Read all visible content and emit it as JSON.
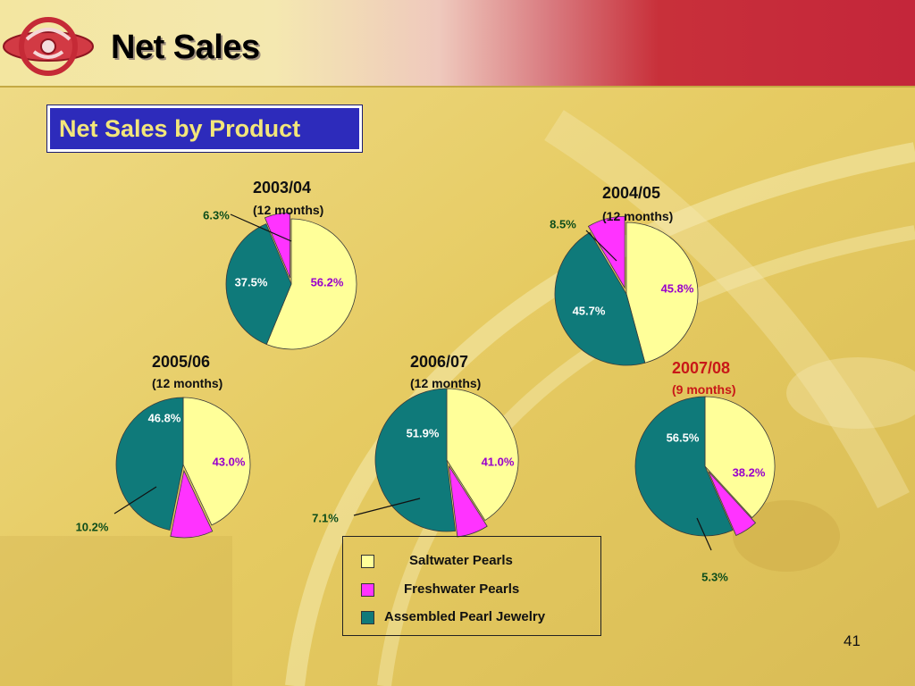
{
  "header": {
    "title": "Net Sales"
  },
  "section": {
    "title": "Net Sales by Product"
  },
  "colors": {
    "saltwater": "#ffff99",
    "freshwater": "#ff33ff",
    "assembled": "#0f7a7a",
    "label_saltwater": "#9900cc",
    "label_assembled": "#ffffff",
    "label_outside": "#0d4d1a",
    "highlight_year": "#c81818"
  },
  "legend": {
    "items": [
      {
        "name": "Saltwater Pearls",
        "color": "#ffff99"
      },
      {
        "name": "Freshwater Pearls",
        "color": "#ff33ff"
      },
      {
        "name": "Assembled Pearl Jewelry",
        "color": "#0f7a7a"
      }
    ]
  },
  "chart_data": [
    {
      "type": "pie",
      "title": "2003/04",
      "subtitle": "(12 months)",
      "categories": [
        "Saltwater Pearls",
        "Assembled Pearl Jewelry",
        "Freshwater Pearls"
      ],
      "values": [
        56.2,
        37.5,
        6.3
      ],
      "labels": [
        "56.2%",
        "37.5%",
        "6.3%"
      ],
      "exploded": "Freshwater Pearls"
    },
    {
      "type": "pie",
      "title": "2004/05",
      "subtitle": "(12 months)",
      "categories": [
        "Saltwater Pearls",
        "Assembled Pearl Jewelry",
        "Freshwater Pearls"
      ],
      "values": [
        45.8,
        45.7,
        8.5
      ],
      "labels": [
        "45.8%",
        "45.7%",
        "8.5%"
      ],
      "exploded": "Freshwater Pearls"
    },
    {
      "type": "pie",
      "title": "2005/06",
      "subtitle": "(12 months)",
      "categories": [
        "Saltwater Pearls",
        "Freshwater Pearls",
        "Assembled Pearl Jewelry"
      ],
      "values": [
        43.0,
        10.2,
        46.8
      ],
      "labels": [
        "43.0%",
        "10.2%",
        "46.8%"
      ],
      "exploded": "Freshwater Pearls"
    },
    {
      "type": "pie",
      "title": "2006/07",
      "subtitle": "(12 months)",
      "categories": [
        "Saltwater Pearls",
        "Freshwater Pearls",
        "Assembled Pearl Jewelry"
      ],
      "values": [
        41.0,
        7.1,
        51.9
      ],
      "labels": [
        "41.0%",
        "7.1%",
        "51.9%"
      ],
      "exploded": "Freshwater Pearls"
    },
    {
      "type": "pie",
      "title": "2007/08",
      "subtitle": "(9 months)",
      "highlight": true,
      "categories": [
        "Saltwater Pearls",
        "Freshwater Pearls",
        "Assembled Pearl Jewelry"
      ],
      "values": [
        38.2,
        5.3,
        56.5
      ],
      "labels": [
        "38.2%",
        "5.3%",
        "56.5%"
      ],
      "exploded": "Freshwater Pearls"
    }
  ],
  "footer": {
    "page_number": "41"
  }
}
